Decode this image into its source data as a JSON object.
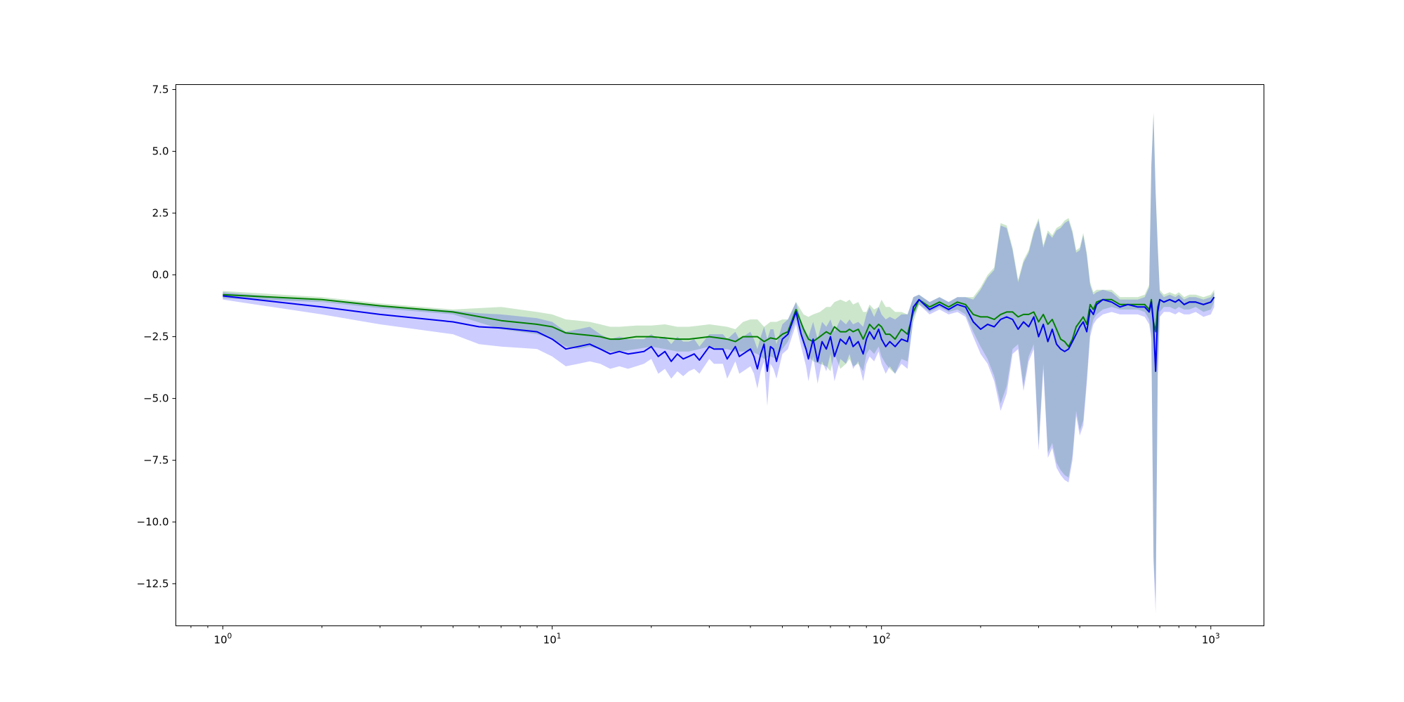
{
  "chart_data": {
    "type": "line",
    "title": "",
    "xlabel": "",
    "ylabel": "",
    "xscale": "log",
    "xlim": [
      0.72,
      1450
    ],
    "ylim": [
      -14.2,
      7.7
    ],
    "grid": false,
    "legend": "none",
    "x_ticks": [
      {
        "value": 1,
        "base": "10",
        "exp": "0"
      },
      {
        "value": 10,
        "base": "10",
        "exp": "1"
      },
      {
        "value": 100,
        "base": "10",
        "exp": "2"
      },
      {
        "value": 1000,
        "base": "10",
        "exp": "3"
      }
    ],
    "y_ticks": [
      {
        "value": 7.5,
        "label": "7.5"
      },
      {
        "value": 5.0,
        "label": "5.0"
      },
      {
        "value": 2.5,
        "label": "2.5"
      },
      {
        "value": 0.0,
        "label": "0.0"
      },
      {
        "value": -2.5,
        "label": "−2.5"
      },
      {
        "value": -5.0,
        "label": "−5.0"
      },
      {
        "value": -7.5,
        "label": "−7.5"
      },
      {
        "value": -10.0,
        "label": "−10.0"
      },
      {
        "value": -12.5,
        "label": "−12.5"
      }
    ],
    "series": [
      {
        "color": "#008000",
        "band_color": "#008000",
        "band_opacity": 0.2,
        "x": [
          1,
          2,
          3,
          5,
          7,
          9,
          10,
          11,
          12,
          13,
          14,
          15,
          16,
          18,
          20,
          22,
          24,
          26,
          28,
          30,
          32,
          34,
          36,
          38,
          40,
          42,
          44,
          46,
          48,
          50,
          52,
          55,
          58,
          60,
          62,
          65,
          68,
          70,
          72,
          75,
          78,
          80,
          82,
          85,
          88,
          90,
          92,
          95,
          98,
          100,
          103,
          106,
          110,
          115,
          120,
          125,
          130,
          140,
          150,
          160,
          170,
          180,
          190,
          200,
          210,
          220,
          230,
          240,
          250,
          260,
          270,
          280,
          290,
          300,
          310,
          320,
          330,
          340,
          350,
          360,
          370,
          380,
          390,
          400,
          410,
          420,
          430,
          440,
          450,
          470,
          500,
          530,
          560,
          600,
          630,
          650,
          660,
          670,
          680,
          690,
          700,
          720,
          750,
          780,
          800,
          830,
          860,
          900,
          950,
          1000,
          1024
        ],
        "y": [
          -0.8,
          -1.0,
          -1.25,
          -1.5,
          -1.85,
          -2.0,
          -2.1,
          -2.35,
          -2.4,
          -2.45,
          -2.5,
          -2.6,
          -2.6,
          -2.5,
          -2.5,
          -2.55,
          -2.6,
          -2.6,
          -2.55,
          -2.5,
          -2.55,
          -2.6,
          -2.7,
          -2.5,
          -2.5,
          -2.5,
          -2.7,
          -2.55,
          -2.6,
          -2.4,
          -2.3,
          -1.4,
          -2.2,
          -2.6,
          -2.7,
          -2.5,
          -2.3,
          -2.4,
          -2.1,
          -2.3,
          -2.3,
          -2.2,
          -2.3,
          -2.2,
          -2.6,
          -2.3,
          -2.0,
          -2.2,
          -2.0,
          -2.1,
          -2.4,
          -2.4,
          -2.6,
          -2.2,
          -2.4,
          -1.5,
          -1.0,
          -1.3,
          -1.1,
          -1.3,
          -1.1,
          -1.2,
          -1.6,
          -1.7,
          -1.7,
          -1.8,
          -1.6,
          -1.5,
          -1.5,
          -1.7,
          -1.6,
          -1.6,
          -1.5,
          -1.9,
          -1.6,
          -2.0,
          -1.8,
          -2.2,
          -2.6,
          -2.7,
          -2.9,
          -2.6,
          -2.1,
          -1.9,
          -1.7,
          -2.0,
          -1.2,
          -1.4,
          -1.1,
          -1.0,
          -1.0,
          -1.2,
          -1.2,
          -1.2,
          -1.2,
          -1.4,
          -1.0,
          -1.9,
          -2.3,
          -1.3,
          -1.0,
          -1.1,
          -1.0,
          -1.1,
          -1.0,
          -1.2,
          -1.1,
          -1.1,
          -1.2,
          -1.1,
          -0.9
        ],
        "lower": [
          -0.95,
          -1.1,
          -1.35,
          -1.6,
          -2.2,
          -2.4,
          -2.6,
          -2.9,
          -3.0,
          -2.9,
          -3.0,
          -3.1,
          -3.1,
          -3.0,
          -2.9,
          -3.0,
          -3.1,
          -3.1,
          -3.0,
          -2.9,
          -3.0,
          -3.0,
          -3.1,
          -3.1,
          -3.1,
          -3.2,
          -3.4,
          -3.3,
          -3.4,
          -3.0,
          -2.7,
          -1.8,
          -2.9,
          -3.3,
          -3.5,
          -3.6,
          -3.7,
          -3.9,
          -3.2,
          -3.8,
          -3.6,
          -3.4,
          -3.7,
          -3.6,
          -3.9,
          -3.2,
          -3.0,
          -3.2,
          -2.9,
          -3.3,
          -3.6,
          -3.8,
          -4.0,
          -3.4,
          -3.5,
          -1.9,
          -1.2,
          -1.5,
          -1.3,
          -1.5,
          -1.4,
          -1.6,
          -2.3,
          -2.9,
          -3.4,
          -4.1,
          -5.2,
          -4.5,
          -3.0,
          -2.8,
          -4.5,
          -3.3,
          -2.8,
          -6.9,
          -3.6,
          -7.2,
          -6.8,
          -7.6,
          -7.9,
          -8.1,
          -8.2,
          -7.3,
          -5.5,
          -6.3,
          -5.9,
          -4.2,
          -2.3,
          -1.8,
          -1.6,
          -1.4,
          -1.3,
          -1.4,
          -1.4,
          -1.4,
          -1.5,
          -1.8,
          -2.4,
          -11.4,
          -13.2,
          -3.9,
          -1.5,
          -1.3,
          -1.3,
          -1.4,
          -1.3,
          -1.4,
          -1.4,
          -1.3,
          -1.5,
          -1.4,
          -1.1
        ],
        "upper": [
          -0.65,
          -0.9,
          -1.15,
          -1.4,
          -1.3,
          -1.5,
          -1.6,
          -1.8,
          -1.85,
          -1.9,
          -2.0,
          -2.1,
          -2.1,
          -2.05,
          -2.05,
          -2.0,
          -2.1,
          -2.1,
          -2.05,
          -2.0,
          -2.05,
          -2.1,
          -2.2,
          -1.9,
          -1.8,
          -1.8,
          -2.1,
          -1.9,
          -1.9,
          -1.8,
          -1.8,
          -1.1,
          -1.6,
          -1.7,
          -1.6,
          -1.5,
          -1.3,
          -1.3,
          -1.1,
          -1.0,
          -1.1,
          -1.0,
          -1.2,
          -1.1,
          -1.5,
          -1.5,
          -1.2,
          -1.4,
          -1.3,
          -1.0,
          -1.3,
          -1.3,
          -1.5,
          -1.5,
          -1.6,
          -0.9,
          -0.8,
          -1.1,
          -0.9,
          -1.1,
          -0.9,
          -0.9,
          -0.9,
          -0.5,
          0.0,
          0.3,
          2.1,
          2.0,
          1.1,
          -0.2,
          0.6,
          1.0,
          1.8,
          2.3,
          1.2,
          1.8,
          1.6,
          1.9,
          2.0,
          2.2,
          2.3,
          1.8,
          1.0,
          1.1,
          1.7,
          0.9,
          -0.3,
          -0.7,
          -0.6,
          -0.6,
          -0.6,
          -0.9,
          -0.9,
          -0.9,
          -0.8,
          -0.4,
          4.5,
          6.6,
          3.4,
          1.2,
          -0.6,
          -0.8,
          -0.7,
          -0.8,
          -0.7,
          -0.9,
          -0.8,
          -0.8,
          -0.9,
          -0.8,
          -0.6
        ]
      },
      {
        "color": "#0000ee",
        "band_color": "#0000ff",
        "band_opacity": 0.2,
        "x": [
          1,
          2,
          3,
          5,
          6,
          7,
          9,
          10,
          11,
          12,
          13,
          14,
          15,
          16,
          17,
          18,
          19,
          20,
          21,
          22,
          23,
          24,
          25,
          26,
          27,
          28,
          30,
          31,
          33,
          34,
          36,
          37,
          38,
          40,
          41,
          42,
          43,
          44,
          45,
          46,
          47,
          48,
          50,
          52,
          55,
          57,
          59,
          60,
          62,
          64,
          66,
          68,
          70,
          72,
          75,
          78,
          80,
          82,
          85,
          88,
          90,
          92,
          95,
          98,
          100,
          103,
          106,
          110,
          115,
          120,
          125,
          130,
          140,
          150,
          160,
          170,
          180,
          190,
          200,
          210,
          220,
          230,
          240,
          250,
          260,
          270,
          280,
          290,
          300,
          310,
          320,
          330,
          340,
          350,
          360,
          370,
          380,
          390,
          400,
          410,
          420,
          430,
          440,
          450,
          470,
          500,
          530,
          560,
          600,
          630,
          650,
          660,
          670,
          680,
          690,
          700,
          720,
          750,
          780,
          800,
          830,
          860,
          900,
          950,
          1000,
          1024
        ],
        "y": [
          -0.85,
          -1.3,
          -1.6,
          -1.9,
          -2.1,
          -2.15,
          -2.3,
          -2.6,
          -3.0,
          -2.9,
          -2.8,
          -3.0,
          -3.2,
          -3.1,
          -3.2,
          -3.15,
          -3.1,
          -2.9,
          -3.3,
          -3.1,
          -3.5,
          -3.2,
          -3.4,
          -3.3,
          -3.2,
          -3.45,
          -2.9,
          -3.0,
          -3.0,
          -3.4,
          -2.9,
          -3.3,
          -3.2,
          -3.0,
          -3.3,
          -3.8,
          -3.2,
          -2.8,
          -3.9,
          -2.9,
          -3.0,
          -3.5,
          -2.6,
          -2.4,
          -1.5,
          -2.4,
          -3.0,
          -3.4,
          -2.6,
          -3.5,
          -2.7,
          -3.0,
          -2.5,
          -3.3,
          -2.6,
          -2.8,
          -2.5,
          -2.9,
          -2.7,
          -3.2,
          -2.6,
          -2.3,
          -2.6,
          -2.2,
          -2.6,
          -2.9,
          -2.7,
          -2.9,
          -2.6,
          -2.7,
          -1.3,
          -1.0,
          -1.4,
          -1.2,
          -1.4,
          -1.2,
          -1.3,
          -1.9,
          -2.2,
          -2.0,
          -2.1,
          -1.8,
          -1.7,
          -1.8,
          -2.2,
          -1.9,
          -2.1,
          -1.7,
          -2.5,
          -2.0,
          -2.7,
          -2.2,
          -2.8,
          -3.0,
          -3.1,
          -3.0,
          -2.7,
          -2.4,
          -2.1,
          -1.9,
          -2.3,
          -1.4,
          -1.6,
          -1.2,
          -1.0,
          -1.1,
          -1.3,
          -1.2,
          -1.3,
          -1.3,
          -1.5,
          -1.1,
          -2.0,
          -3.9,
          -1.5,
          -1.0,
          -1.1,
          -1.0,
          -1.1,
          -1.0,
          -1.2,
          -1.1,
          -1.1,
          -1.2,
          -1.1,
          -0.9
        ],
        "lower": [
          -1.0,
          -1.6,
          -2.0,
          -2.4,
          -2.8,
          -2.9,
          -3.0,
          -3.3,
          -3.7,
          -3.6,
          -3.5,
          -3.6,
          -3.8,
          -3.7,
          -3.8,
          -3.7,
          -3.6,
          -3.4,
          -4.0,
          -3.8,
          -4.2,
          -3.9,
          -4.1,
          -3.9,
          -3.8,
          -4.0,
          -3.4,
          -3.6,
          -3.6,
          -4.2,
          -3.5,
          -4.0,
          -3.9,
          -3.7,
          -4.0,
          -4.6,
          -3.9,
          -3.5,
          -5.3,
          -3.6,
          -3.8,
          -4.2,
          -3.2,
          -3.0,
          -2.0,
          -2.9,
          -3.7,
          -4.3,
          -3.3,
          -4.4,
          -3.5,
          -3.9,
          -3.2,
          -4.3,
          -3.4,
          -3.6,
          -3.2,
          -3.8,
          -3.5,
          -4.3,
          -3.6,
          -3.3,
          -3.5,
          -3.1,
          -3.6,
          -4.0,
          -3.7,
          -4.0,
          -3.6,
          -3.8,
          -1.7,
          -1.2,
          -1.6,
          -1.4,
          -1.6,
          -1.5,
          -1.7,
          -2.5,
          -3.2,
          -3.6,
          -4.3,
          -5.5,
          -4.8,
          -3.2,
          -3.0,
          -4.7,
          -3.5,
          -3.0,
          -7.1,
          -3.8,
          -7.4,
          -7.0,
          -7.8,
          -8.1,
          -8.3,
          -8.4,
          -7.5,
          -5.7,
          -6.5,
          -6.1,
          -4.4,
          -2.5,
          -2.0,
          -1.8,
          -1.6,
          -1.5,
          -1.6,
          -1.6,
          -1.6,
          -1.7,
          -2.0,
          -2.6,
          -11.6,
          -13.7,
          -4.1,
          -1.7,
          -1.5,
          -1.5,
          -1.6,
          -1.5,
          -1.6,
          -1.6,
          -1.5,
          -1.7,
          -1.6,
          -1.3
        ],
        "upper": [
          -0.7,
          -1.05,
          -1.25,
          -1.45,
          -1.55,
          -1.6,
          -1.75,
          -1.9,
          -2.3,
          -2.2,
          -2.1,
          -2.4,
          -2.6,
          -2.5,
          -2.6,
          -2.6,
          -2.6,
          -2.4,
          -2.6,
          -2.5,
          -2.8,
          -2.5,
          -2.7,
          -2.7,
          -2.6,
          -2.9,
          -2.4,
          -2.4,
          -2.4,
          -2.6,
          -2.3,
          -2.6,
          -2.5,
          -2.3,
          -2.6,
          -3.0,
          -2.5,
          -2.1,
          -2.6,
          -2.2,
          -2.2,
          -2.8,
          -2.0,
          -1.8,
          -1.1,
          -1.9,
          -2.3,
          -2.5,
          -1.9,
          -2.6,
          -1.9,
          -2.1,
          -1.8,
          -2.3,
          -1.8,
          -2.0,
          -1.8,
          -2.0,
          -1.9,
          -2.1,
          -1.6,
          -1.3,
          -1.7,
          -1.3,
          -1.6,
          -1.8,
          -1.7,
          -1.8,
          -1.6,
          -1.6,
          -0.9,
          -0.8,
          -1.1,
          -0.9,
          -1.1,
          -0.9,
          -0.9,
          -1.0,
          -0.6,
          -0.1,
          0.2,
          2.0,
          1.9,
          1.0,
          -0.3,
          0.5,
          0.9,
          1.7,
          2.2,
          1.1,
          1.7,
          1.5,
          1.8,
          1.9,
          2.1,
          2.2,
          1.7,
          0.9,
          1.0,
          1.6,
          0.8,
          -0.4,
          -0.8,
          -0.7,
          -0.6,
          -0.7,
          -1.0,
          -1.0,
          -1.0,
          -0.9,
          -0.5,
          4.4,
          6.5,
          3.3,
          1.1,
          -0.7,
          -0.9,
          -0.8,
          -0.9,
          -0.8,
          -1.0,
          -0.9,
          -0.9,
          -1.0,
          -0.9,
          -0.7
        ]
      }
    ]
  }
}
